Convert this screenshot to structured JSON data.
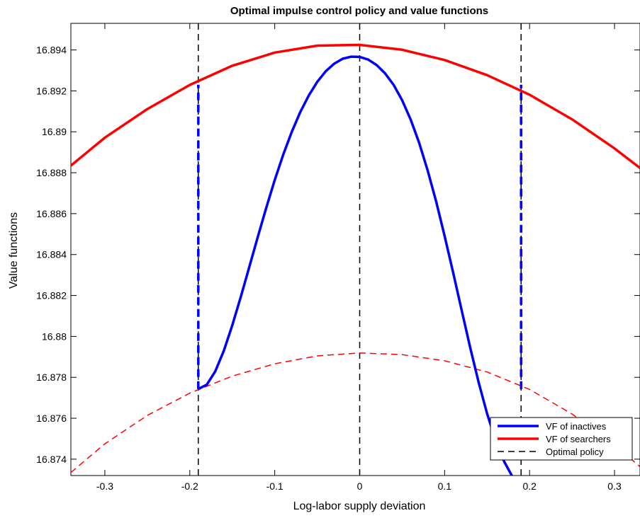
{
  "chart_data": {
    "type": "line",
    "title": "Optimal impulse control policy and value functions",
    "xlabel": "Log-labor supply deviation",
    "ylabel": "Value functions",
    "xlim": [
      -0.34,
      0.33
    ],
    "ylim": [
      16.8732,
      16.8953
    ],
    "grid": false,
    "legend_position": "bottom-right",
    "x_ticks": [
      -0.3,
      -0.2,
      -0.1,
      0,
      0.1,
      0.2,
      0.3
    ],
    "x_tick_labels": [
      "-0.3",
      "-0.2",
      "-0.1",
      "0",
      "0.1",
      "0.2",
      "0.3"
    ],
    "y_ticks": [
      16.874,
      16.876,
      16.878,
      16.88,
      16.882,
      16.884,
      16.886,
      16.888,
      16.89,
      16.892,
      16.894
    ],
    "y_tick_labels": [
      "16.874",
      "16.876",
      "16.878",
      "16.88",
      "16.882",
      "16.884",
      "16.886",
      "16.888",
      "16.89",
      "16.892",
      "16.894"
    ],
    "series": [
      {
        "name": "VF of inactives",
        "color": "#0000ff",
        "style": "solid",
        "x": [
          -0.19,
          -0.18,
          -0.17,
          -0.16,
          -0.15,
          -0.14,
          -0.13,
          -0.12,
          -0.11,
          -0.1,
          -0.09,
          -0.08,
          -0.07,
          -0.06,
          -0.05,
          -0.04,
          -0.03,
          -0.02,
          -0.01,
          0,
          0.01,
          0.02,
          0.03,
          0.04,
          0.05,
          0.06,
          0.07,
          0.08,
          0.09,
          0.1,
          0.11,
          0.12,
          0.13,
          0.14,
          0.15,
          0.16,
          0.17,
          0.18
        ],
        "y": [
          16.87743,
          16.87764,
          16.87829,
          16.87929,
          16.88054,
          16.88193,
          16.88339,
          16.88486,
          16.88629,
          16.88764,
          16.88888,
          16.88999,
          16.89096,
          16.89177,
          16.89244,
          16.89296,
          16.89333,
          16.89357,
          16.89367,
          16.89366,
          16.89353,
          16.89326,
          16.89285,
          16.89229,
          16.89154,
          16.8906,
          16.88946,
          16.88811,
          16.88659,
          16.88491,
          16.88313,
          16.88129,
          16.87947,
          16.87776,
          16.87622,
          16.87492,
          16.87389,
          16.87313
        ]
      },
      {
        "name": "VF of searchers",
        "color": "#ff0000",
        "style": "solid",
        "x": [
          -0.34,
          -0.3,
          -0.25,
          -0.2,
          -0.15,
          -0.1,
          -0.05,
          0,
          0.05,
          0.1,
          0.15,
          0.2,
          0.25,
          0.3,
          0.33
        ],
        "y": [
          16.88835,
          16.88971,
          16.89111,
          16.89229,
          16.89323,
          16.89387,
          16.89421,
          16.89425,
          16.89401,
          16.89351,
          16.89277,
          16.89181,
          16.89061,
          16.88919,
          16.88823
        ]
      },
      {
        "name": "",
        "color": "#ff0000",
        "style": "dashed",
        "x": [
          -0.34,
          -0.3,
          -0.25,
          -0.2,
          -0.15,
          -0.1,
          -0.05,
          0,
          0.05,
          0.1,
          0.15,
          0.2,
          0.25,
          0.3,
          0.33
        ],
        "y": [
          16.87335,
          16.87475,
          16.87614,
          16.87723,
          16.87806,
          16.87866,
          16.87905,
          16.87919,
          16.87911,
          16.87881,
          16.87826,
          16.87741,
          16.87621,
          16.87472,
          16.87363
        ]
      },
      {
        "name": "",
        "color": "#0000ff",
        "style": "dashed-thick",
        "x": [
          -0.19,
          -0.19
        ],
        "y": [
          16.87743,
          16.8923
        ]
      },
      {
        "name": "",
        "color": "#0000ff",
        "style": "dashed-thick",
        "x": [
          0.19,
          0.19
        ],
        "y": [
          16.87743,
          16.8923
        ]
      }
    ],
    "policy_lines": {
      "name": "Optimal policy",
      "color": "#000000",
      "style": "dashed",
      "x": [
        -0.19,
        0,
        0.19
      ]
    },
    "legend": [
      {
        "label": "VF of inactives",
        "color": "#0000ff",
        "style": "solid"
      },
      {
        "label": "VF of searchers",
        "color": "#ff0000",
        "style": "solid"
      },
      {
        "label": "Optimal policy",
        "color": "#000000",
        "style": "dashed"
      }
    ]
  }
}
